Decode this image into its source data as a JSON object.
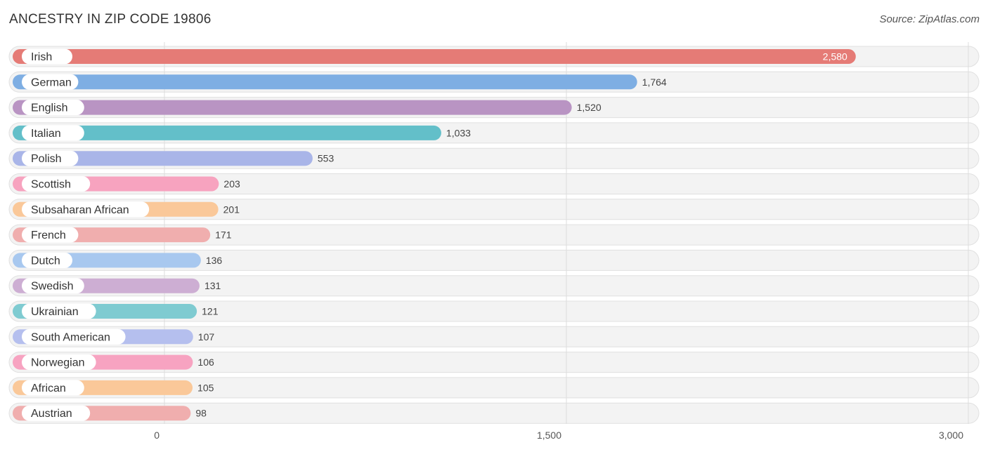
{
  "page": {
    "title": "ANCESTRY IN ZIP CODE 19806",
    "source": "Source: ZipAtlas.com"
  },
  "chart_data": {
    "type": "bar",
    "orientation": "horizontal",
    "title": "ANCESTRY IN ZIP CODE 19806",
    "xlabel": "",
    "ylabel": "",
    "xlim": [
      0,
      3000
    ],
    "ticks": [
      {
        "value": 0,
        "label": "0"
      },
      {
        "value": 1500,
        "label": "1,500"
      },
      {
        "value": 3000,
        "label": "3,000"
      }
    ],
    "grid": true,
    "categories": [
      "Irish",
      "German",
      "English",
      "Italian",
      "Polish",
      "Scottish",
      "Subsaharan African",
      "French",
      "Dutch",
      "Swedish",
      "Ukrainian",
      "South American",
      "Norwegian",
      "African",
      "Austrian"
    ],
    "values": [
      2580,
      1764,
      1520,
      1033,
      553,
      203,
      201,
      171,
      136,
      131,
      121,
      107,
      106,
      105,
      98
    ],
    "value_labels": [
      "2,580",
      "1,764",
      "1,520",
      "1,033",
      "553",
      "203",
      "201",
      "171",
      "136",
      "131",
      "121",
      "107",
      "106",
      "105",
      "98"
    ],
    "colors": [
      "#e57b76",
      "#7eaee3",
      "#b994c3",
      "#63bfc9",
      "#a9b5e8",
      "#f7a3bf",
      "#fac899",
      "#f0aeae",
      "#a8c8ef",
      "#cdaed3",
      "#7fcbd1",
      "#b5bfee",
      "#f7a3c1",
      "#fac899",
      "#f0aeae"
    ]
  }
}
